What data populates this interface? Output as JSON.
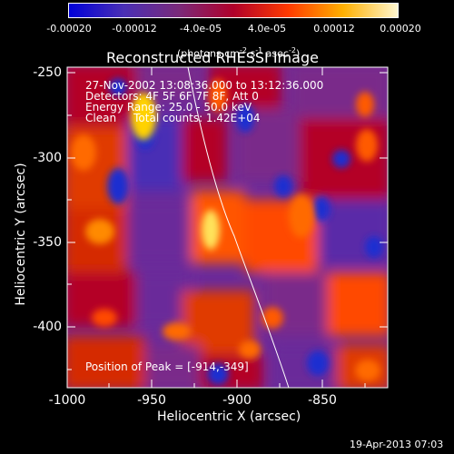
{
  "colorbar": {
    "ticks": [
      "-0.00020",
      "-0.00012",
      "-4.0e-05",
      "4.0e-05",
      "0.00012",
      "0.00020"
    ],
    "unit_prefix": "(photons cm",
    "unit_exp1": "-2",
    "unit_mid": " s",
    "unit_exp2": "-1",
    "unit_mid2": " asec",
    "unit_exp3": "-2",
    "unit_suffix": ")",
    "colors": [
      "#0000d8",
      "#4a2fb5",
      "#7a2a7a",
      "#b0002a",
      "#ff3a00",
      "#ffb000",
      "#fff7d0"
    ]
  },
  "plot": {
    "title": "Reconstructed RHESSI Image",
    "info_lines": [
      "27-Nov-2002 13:08:36.000 to 13:12:36.000",
      "Detectors: 4F 5F 6F 7F 8F, Att 0",
      "Energy Range: 25.0 - 50.0 keV",
      "Clean     Total counts: 1.42E+04"
    ],
    "peak_text": "Position of Peak = [-914,-349]",
    "xlabel": "Heliocentric X (arcsec)",
    "ylabel": "Heliocentric Y (arcsec)",
    "x_ticks": [
      "-1000",
      "-950",
      "-900",
      "-850"
    ],
    "y_ticks": [
      "-250",
      "-300",
      "-350",
      "-400"
    ],
    "footer": "19-Apr-2013 07:03"
  }
}
